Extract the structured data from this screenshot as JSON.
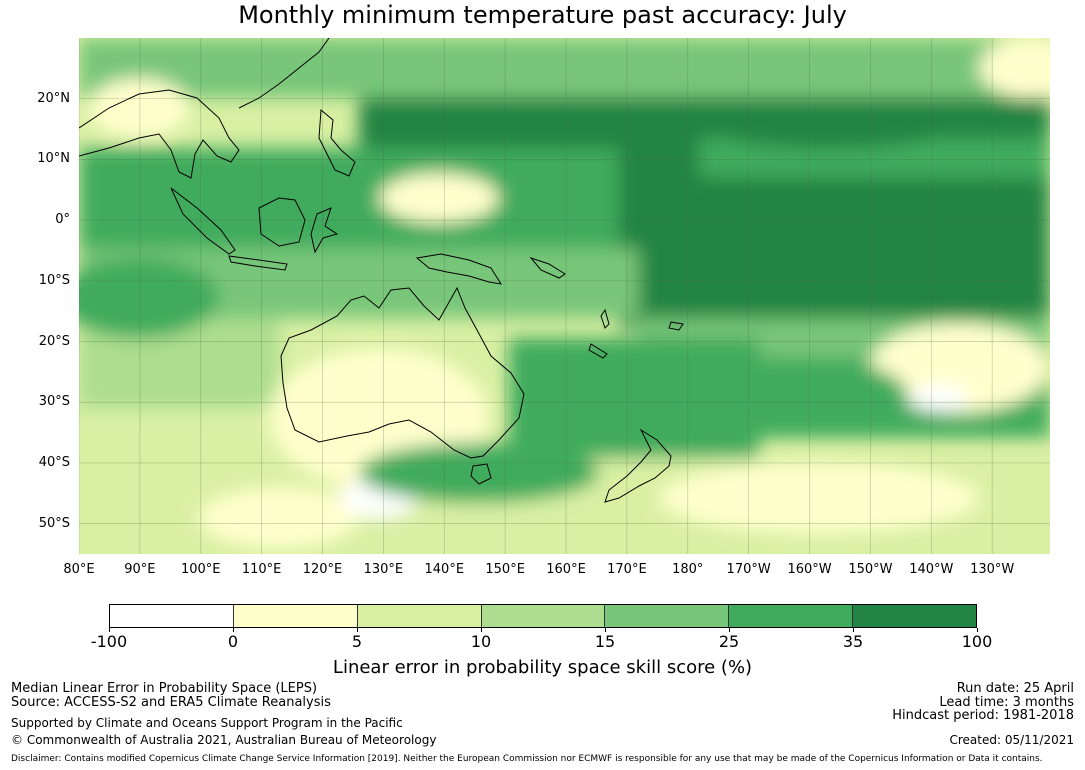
{
  "title": "Monthly minimum temperature past accuracy: July",
  "map": {
    "lat_labels": [
      "20°N",
      "10°N",
      "0°",
      "10°S",
      "20°S",
      "30°S",
      "40°S",
      "50°S"
    ],
    "lon_labels": [
      "80°E",
      "90°E",
      "100°E",
      "110°E",
      "120°E",
      "130°E",
      "140°E",
      "150°E",
      "160°E",
      "170°E",
      "180°",
      "170°W",
      "160°W",
      "150°W",
      "140°W",
      "130°W"
    ],
    "lat_values": [
      20,
      10,
      0,
      -10,
      -20,
      -30,
      -40,
      -50
    ],
    "lon_values": [
      80,
      90,
      100,
      110,
      120,
      130,
      140,
      150,
      160,
      170,
      180,
      190,
      200,
      210,
      220,
      230
    ],
    "extent": {
      "lon_min": 80,
      "lon_max": 239.5,
      "lat_min": -55,
      "lat_max": 30
    },
    "regions": [
      "Australia",
      "New Zealand",
      "Indonesia",
      "Papua New Guinea",
      "Philippines",
      "Southeast Asia",
      "Pacific Islands"
    ]
  },
  "colorbar": {
    "tick_labels": [
      "-100",
      "0",
      "5",
      "10",
      "15",
      "25",
      "35",
      "100"
    ],
    "colors": [
      "#ffffff",
      "#ffffcc",
      "#d9f0a3",
      "#addd8e",
      "#78c679",
      "#41ab5d",
      "#238443"
    ],
    "label": "Linear error in probability space skill score (%)"
  },
  "chart_data": {
    "type": "heatmap",
    "title": "Monthly minimum temperature past accuracy: July",
    "xlabel": "",
    "ylabel": "",
    "xlim": [
      80,
      239.5
    ],
    "ylim": [
      -55,
      30
    ],
    "legend_label": "Linear error in probability space skill score (%)",
    "levels": [
      -100,
      0,
      5,
      10,
      15,
      25,
      35,
      100
    ]
  },
  "footer": {
    "line1": "Median Linear Error in Probability Space (LEPS)",
    "line2": "Source: ACCESS-S2 and ERA5 Climate Reanalysis",
    "line3": "Supported by Climate and Oceans Support Program in the Pacific",
    "line4": "© Commonwealth of Australia 2021, Australian Bureau of Meteorology",
    "run_date": "Run date: 25 April",
    "lead_time": "Lead time: 3 months",
    "hindcast": "Hindcast period: 1981-2018",
    "created": "Created: 05/11/2021",
    "disclaimer": "Disclaimer: Contains modified Copernicus Climate Change Service Information [2019]. Neither the European Commission nor ECMWF is responsible for any use that may be made of the Copernicus Information or Data it contains."
  }
}
